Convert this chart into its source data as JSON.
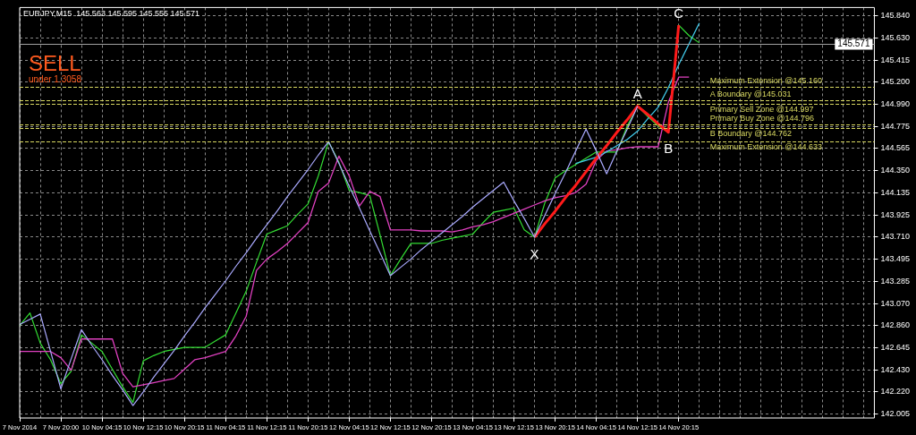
{
  "chart_data": {
    "type": "line",
    "title": "EURJPY,M15  145.563 145.595 145.555 145.571",
    "categories": [
      "7 Nov 2014",
      null,
      null,
      null,
      "7 Nov 20:00",
      null,
      null,
      null,
      "10 Nov 04:15",
      null,
      null,
      null,
      "10 Nov 12:15",
      null,
      null,
      null,
      "10 Nov 20:15",
      null,
      null,
      null,
      "11 Nov 04:15",
      null,
      null,
      null,
      "11 Nov 12:15",
      null,
      null,
      null,
      "11 Nov 20:15",
      null,
      null,
      null,
      "12 Nov 04:15",
      null,
      null,
      null,
      "12 Nov 12:15",
      null,
      null,
      null,
      "12 Nov 20:15",
      null,
      null,
      null,
      "13 Nov 04:15",
      null,
      null,
      null,
      "13 Nov 12:15",
      null,
      null,
      null,
      "13 Nov 20:15",
      null,
      null,
      null,
      "14 Nov 04:15",
      null,
      null,
      null,
      "14 Nov 12:15",
      null,
      null,
      null,
      "14 Nov 20:15",
      null,
      null,
      null,
      null,
      null,
      null,
      null,
      null,
      null,
      null,
      null,
      null,
      null,
      null,
      null,
      null,
      null,
      null,
      null
    ],
    "ylim": [
      141.97,
      145.92
    ],
    "yticks": [
      {
        "value": 142.005,
        "label": "142.005"
      },
      {
        "value": 142.22,
        "label": "142.220"
      },
      {
        "value": 142.43,
        "label": "142.430"
      },
      {
        "value": 142.645,
        "label": "142.645"
      },
      {
        "value": 142.86,
        "label": "142.860"
      },
      {
        "value": 143.07,
        "label": "143.070"
      },
      {
        "value": 143.285,
        "label": "143.285"
      },
      {
        "value": 143.495,
        "label": "143.495"
      },
      {
        "value": 143.71,
        "label": "143.710"
      },
      {
        "value": 143.925,
        "label": "143.925"
      },
      {
        "value": 144.135,
        "label": "144.135"
      },
      {
        "value": 144.35,
        "label": "144.350"
      },
      {
        "value": 144.565,
        "label": "144.565"
      },
      {
        "value": 144.775,
        "label": "144.775"
      },
      {
        "value": 144.99,
        "label": "144.990"
      },
      {
        "value": 145.2,
        "label": "145.200"
      },
      {
        "value": 145.415,
        "label": "145.415"
      },
      {
        "value": 145.63,
        "label": "145.630"
      },
      {
        "value": 145.84,
        "label": "145.840"
      }
    ],
    "grid": true,
    "legend": false,
    "marker": "none",
    "series": [
      {
        "color": "#33dd33",
        "values": [
          142.86,
          142.98,
          142.69,
          142.53,
          142.3,
          142.42,
          142.77,
          142.69,
          142.61,
          142.44,
          142.27,
          142.12,
          142.52,
          142.57,
          142.61,
          142.63,
          142.65,
          142.65,
          142.65,
          142.71,
          142.77,
          142.98,
          143.19,
          143.47,
          143.74,
          143.78,
          143.82,
          143.93,
          144.03,
          144.3,
          144.63,
          144.43,
          144.16,
          144.14,
          144.11,
          143.73,
          143.34,
          143.5,
          143.65,
          143.65,
          143.65,
          143.68,
          143.7,
          143.72,
          143.74,
          143.85,
          143.95,
          143.97,
          143.99,
          143.78,
          143.71,
          144.04,
          144.28,
          144.35,
          144.41,
          144.47,
          144.53,
          144.53,
          144.53,
          144.78,
          144.97,
          144.87,
          144.78,
          144.72,
          145.75,
          145.65,
          145.58,
          null,
          null,
          null,
          null,
          null,
          null,
          null,
          null,
          null,
          null,
          null,
          null,
          null,
          null,
          null,
          null,
          null
        ]
      },
      {
        "color": "#aaaaff",
        "values": [
          142.87,
          142.92,
          142.97,
          142.61,
          142.25,
          142.54,
          142.82,
          142.67,
          142.53,
          142.38,
          142.24,
          142.09,
          142.22,
          142.36,
          142.49,
          142.62,
          142.76,
          142.89,
          143.03,
          143.16,
          143.29,
          143.43,
          143.56,
          143.7,
          143.83,
          143.96,
          144.1,
          144.23,
          144.36,
          144.5,
          144.63,
          144.42,
          144.2,
          143.99,
          143.77,
          143.56,
          143.34,
          143.42,
          143.5,
          143.59,
          143.67,
          143.75,
          143.83,
          143.91,
          144.0,
          144.08,
          144.16,
          144.24,
          144.06,
          143.89,
          143.71,
          143.92,
          144.13,
          144.33,
          144.54,
          144.75,
          144.54,
          144.32,
          144.54,
          144.75,
          144.97,
          null,
          null,
          null,
          null,
          null,
          null,
          null,
          null,
          null,
          null,
          null,
          null,
          null,
          null,
          null,
          null,
          null,
          null,
          null,
          null,
          null,
          null,
          null
        ]
      },
      {
        "color": "#e040c0",
        "values": [
          142.61,
          142.61,
          142.61,
          142.61,
          142.55,
          142.43,
          142.73,
          142.73,
          142.73,
          142.73,
          142.4,
          142.27,
          142.29,
          142.31,
          142.33,
          142.35,
          142.44,
          142.53,
          142.55,
          142.58,
          142.61,
          142.76,
          142.95,
          143.39,
          143.5,
          143.57,
          143.65,
          143.75,
          143.85,
          144.15,
          144.23,
          144.49,
          144.3,
          144.01,
          144.15,
          144.1,
          143.78,
          143.78,
          143.78,
          143.77,
          143.77,
          143.77,
          143.76,
          143.78,
          143.81,
          143.83,
          143.86,
          143.9,
          143.94,
          143.98,
          144.02,
          144.06,
          144.09,
          144.11,
          144.14,
          144.22,
          144.45,
          144.54,
          144.55,
          144.57,
          144.58,
          144.58,
          144.58,
          145.01,
          145.25,
          145.25,
          null,
          null,
          null,
          null,
          null,
          null,
          null,
          null,
          null,
          null,
          null,
          null,
          null,
          null,
          null,
          null,
          null,
          null
        ]
      },
      {
        "color": "#40c8e8",
        "values": [
          null,
          null,
          null,
          null,
          null,
          null,
          null,
          null,
          null,
          null,
          null,
          null,
          null,
          null,
          null,
          null,
          null,
          null,
          null,
          null,
          null,
          null,
          null,
          null,
          null,
          null,
          null,
          null,
          null,
          null,
          null,
          null,
          null,
          null,
          null,
          null,
          null,
          null,
          null,
          null,
          null,
          null,
          null,
          null,
          null,
          null,
          null,
          null,
          null,
          null,
          null,
          null,
          null,
          null,
          144.42,
          144.45,
          144.48,
          144.53,
          144.59,
          144.65,
          144.73,
          144.85,
          144.96,
          145.15,
          145.37,
          145.57,
          145.77,
          null,
          null,
          null,
          null,
          null,
          null,
          null,
          null,
          null,
          null,
          null,
          null,
          null,
          null,
          null,
          null,
          null
        ]
      },
      {
        "color": "#ff1a1a",
        "values": [
          null,
          null,
          null,
          null,
          null,
          null,
          null,
          null,
          null,
          null,
          null,
          null,
          null,
          null,
          null,
          null,
          null,
          null,
          null,
          null,
          null,
          null,
          null,
          null,
          null,
          null,
          null,
          null,
          null,
          null,
          null,
          null,
          null,
          null,
          null,
          null,
          null,
          null,
          null,
          null,
          null,
          null,
          null,
          null,
          null,
          null,
          null,
          null,
          null,
          null,
          143.71,
          143.84,
          143.96,
          144.09,
          144.21,
          144.34,
          144.47,
          144.59,
          144.72,
          144.84,
          144.97,
          144.89,
          144.8,
          144.72,
          145.75,
          null,
          null,
          null,
          null,
          null,
          null,
          null,
          null,
          null,
          null,
          null,
          null,
          null,
          null,
          null,
          null,
          null,
          null,
          null
        ]
      }
    ],
    "ref_lines": [
      {
        "axis": "y",
        "value": 145.571,
        "label": "145.571",
        "color": "#a0a0a0",
        "line_style": "solid"
      },
      {
        "axis": "y",
        "value": 145.16,
        "label": "Maximum Extension @145.160",
        "color": "#d8d860",
        "line_style": "dashed"
      },
      {
        "axis": "y",
        "value": 145.031,
        "label": "A Boundary @145.031",
        "color": "#d8d860",
        "line_style": "dashed"
      },
      {
        "axis": "y",
        "value": 144.997,
        "label": "Primary Sell Zone @144.997",
        "color": "#d8d860",
        "line_style": "dashed"
      },
      {
        "axis": "y",
        "value": 144.796,
        "label": "Primary Buy Zone @144.796",
        "color": "#d8d860",
        "line_style": "dashed"
      },
      {
        "axis": "y",
        "value": 144.762,
        "label": "B Boundary @144.762",
        "color": "#d8d860",
        "line_style": "dashed"
      },
      {
        "axis": "y",
        "value": 144.633,
        "label": "Maximum Extension @144.633",
        "color": "#d8d860",
        "line_style": "dashed"
      }
    ],
    "annotations": [
      "SELL",
      "under 1.3058",
      {
        "text": "X",
        "y": 143.71
      },
      {
        "text": "A",
        "y": 144.97
      },
      {
        "text": "B",
        "y": 144.72
      },
      {
        "text": "C",
        "y": 145.75
      }
    ]
  }
}
